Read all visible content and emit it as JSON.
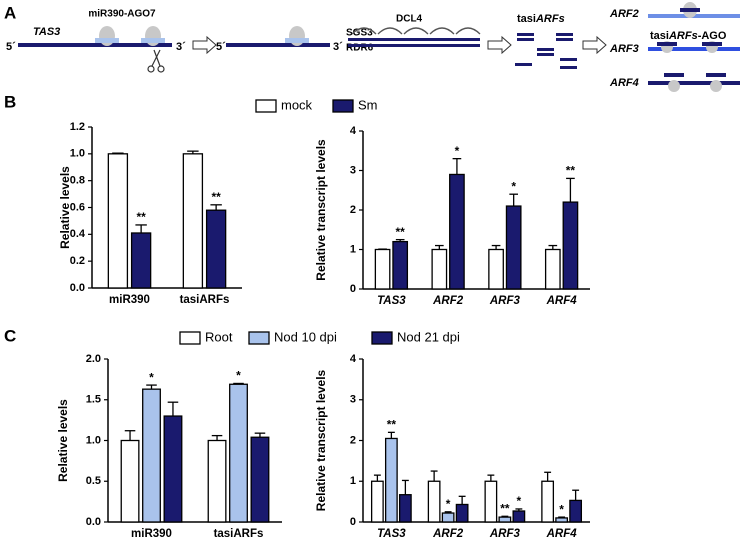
{
  "panels": [
    "A",
    "B",
    "C"
  ],
  "diagram": {
    "mirna": "miR390-AGO7",
    "five_prime": "5´",
    "three_prime": "3´",
    "tas3": "TAS3",
    "sgs3": "SGS3",
    "rdr6": "RDR6",
    "dcl4": "DCL4",
    "tasiarfs": {
      "prefix": "tasi",
      "italic": "ARFs"
    },
    "tasiarfs_ago": {
      "prefix": "tasi",
      "italic": "ARFs",
      "suffix": "-AGO"
    },
    "arf2": "ARF2",
    "arf3": "ARF3",
    "arf4": "ARF4"
  },
  "chart_data": [
    {
      "type": "bar",
      "ylabel": "Relative levels",
      "categories": [
        "miR390",
        "tasiARFs"
      ],
      "italic_categories": false,
      "legend": true,
      "ylim": [
        0,
        1.2
      ],
      "yticks": [
        {
          "value": 0,
          "label": "0.0"
        },
        0.2,
        0.4,
        0.6,
        0.8,
        {
          "value": 1,
          "label": "1.0"
        },
        1.2
      ],
      "series": [
        {
          "name": "mock",
          "color": "#ffffff",
          "values": [
            1.0,
            1.0
          ],
          "errors": [
            0.005,
            0.02
          ],
          "annotations": [
            null,
            null
          ]
        },
        {
          "name": "Sm",
          "color": "#1a1a6e",
          "values": [
            0.41,
            0.58
          ],
          "errors": [
            0.06,
            0.04
          ],
          "annotations": [
            "**",
            "**"
          ]
        }
      ]
    },
    {
      "type": "bar",
      "ylabel": "Relative transcript levels",
      "categories": [
        "TAS3",
        "ARF2",
        "ARF3",
        "ARF4"
      ],
      "italic_categories": true,
      "legend": false,
      "ylim": [
        0,
        4
      ],
      "yticks": [
        0,
        1,
        2,
        3,
        4
      ],
      "series": [
        {
          "color": "#ffffff",
          "values": [
            1.0,
            1.0,
            1.0,
            1.0
          ],
          "errors": [
            0.01,
            0.1,
            0.1,
            0.1
          ],
          "annotations": [
            null,
            null,
            null,
            null
          ]
        },
        {
          "color": "#1a1a6e",
          "values": [
            1.2,
            2.9,
            2.1,
            2.2
          ],
          "errors": [
            0.05,
            0.4,
            0.3,
            0.6
          ],
          "annotations": [
            "**",
            "*",
            "*",
            "**"
          ]
        }
      ]
    },
    {
      "type": "bar",
      "ylabel": "Relative levels",
      "categories": [
        "miR390",
        "tasiARFs"
      ],
      "italic_categories": false,
      "legend": true,
      "ylim": [
        0,
        2
      ],
      "yticks": [
        {
          "value": 0,
          "label": "0.0"
        },
        0.5,
        {
          "value": 1,
          "label": "1.0"
        },
        1.5,
        {
          "value": 2,
          "label": "2.0"
        }
      ],
      "series": [
        {
          "name": "Root",
          "color": "#ffffff",
          "values": [
            1.0,
            1.0
          ],
          "errors": [
            0.12,
            0.06
          ],
          "annotations": [
            null,
            null
          ]
        },
        {
          "name": "Nod 10 dpi",
          "color": "#a9c3ec",
          "values": [
            1.63,
            1.69
          ],
          "errors": [
            0.05,
            0.01
          ],
          "annotations": [
            "*",
            "*"
          ]
        },
        {
          "name": "Nod 21 dpi",
          "color": "#1a1a6e",
          "values": [
            1.3,
            1.04
          ],
          "errors": [
            0.17,
            0.05
          ],
          "annotations": [
            null,
            null
          ]
        }
      ]
    },
    {
      "type": "bar",
      "ylabel": "Relative transcript levels",
      "categories": [
        "TAS3",
        "ARF2",
        "ARF3",
        "ARF4"
      ],
      "italic_categories": true,
      "legend": false,
      "ylim": [
        0,
        4
      ],
      "yticks": [
        0,
        1,
        2,
        3,
        4
      ],
      "series": [
        {
          "color": "#ffffff",
          "values": [
            1.0,
            1.0,
            1.0,
            1.0
          ],
          "errors": [
            0.15,
            0.25,
            0.15,
            0.22
          ],
          "annotations": [
            null,
            null,
            null,
            null
          ]
        },
        {
          "color": "#a9c3ec",
          "values": [
            2.05,
            0.22,
            0.12,
            0.1
          ],
          "errors": [
            0.15,
            0.03,
            0.02,
            0.02
          ],
          "annotations": [
            "**",
            "*",
            "**",
            "*"
          ]
        },
        {
          "color": "#1a1a6e",
          "values": [
            0.67,
            0.43,
            0.27,
            0.53
          ],
          "errors": [
            0.35,
            0.2,
            0.05,
            0.25
          ],
          "annotations": [
            null,
            null,
            "*",
            null
          ]
        }
      ]
    }
  ]
}
